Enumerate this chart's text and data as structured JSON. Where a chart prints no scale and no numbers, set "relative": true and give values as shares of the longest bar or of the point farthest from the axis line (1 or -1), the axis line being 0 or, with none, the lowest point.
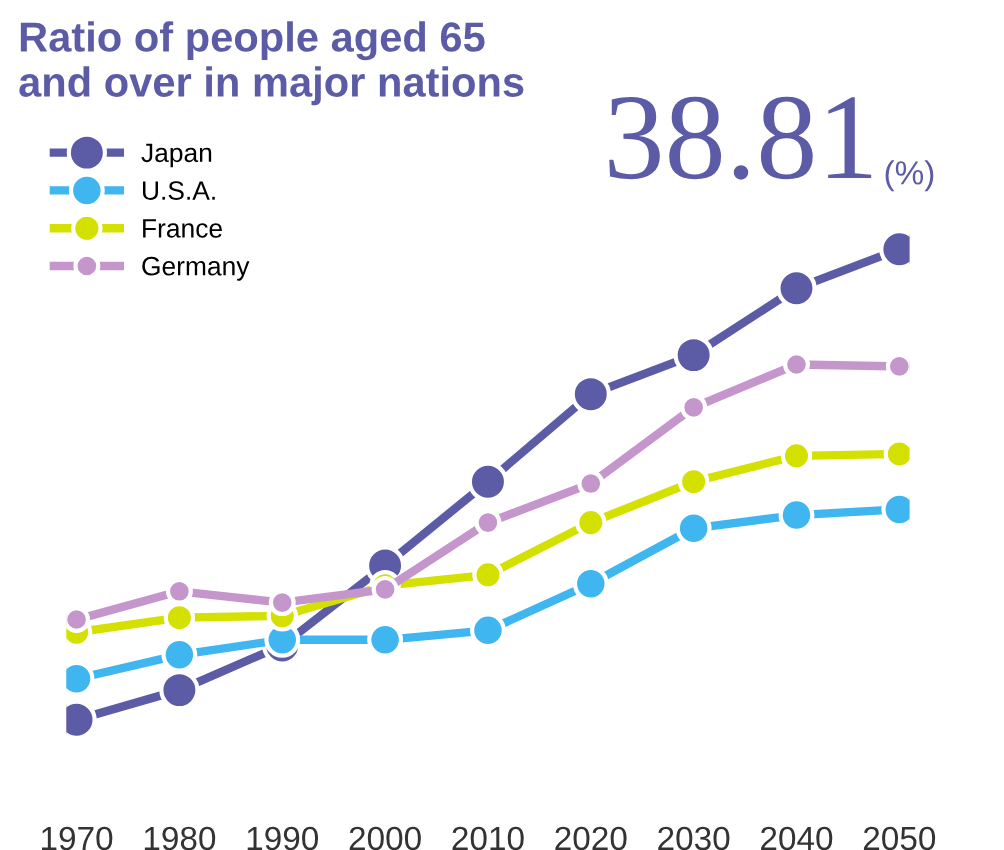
{
  "chart_data": {
    "type": "line",
    "title": "Ratio of people aged 65\nand over in major nations",
    "relative": true,
    "categories": [
      "1970",
      "1980",
      "1990",
      "2000",
      "2010",
      "2020",
      "2030",
      "2040",
      "2050"
    ],
    "series": [
      {
        "name": "Japan",
        "color": "#5c5ca6",
        "values": [
          0,
          0.063,
          0.158,
          0.328,
          0.506,
          0.692,
          0.775,
          0.917,
          1
        ]
      },
      {
        "name": "U.S.A.",
        "color": "#3fb6ef",
        "values": [
          0.087,
          0.138,
          0.17,
          0.17,
          0.19,
          0.289,
          0.407,
          0.435,
          0.447
        ]
      },
      {
        "name": "France",
        "color": "#d4e100",
        "values": [
          0.186,
          0.217,
          0.221,
          0.285,
          0.308,
          0.419,
          0.506,
          0.561,
          0.565
        ]
      },
      {
        "name": "Germany",
        "color": "#c596cc",
        "values": [
          0.213,
          0.273,
          0.249,
          0.277,
          0.419,
          0.502,
          0.664,
          0.755,
          0.751
        ]
      }
    ],
    "annotations": [
      "38.81",
      "(%)"
    ],
    "marker": "circle",
    "line_style": "solid",
    "legend": "top left",
    "grid": false
  }
}
